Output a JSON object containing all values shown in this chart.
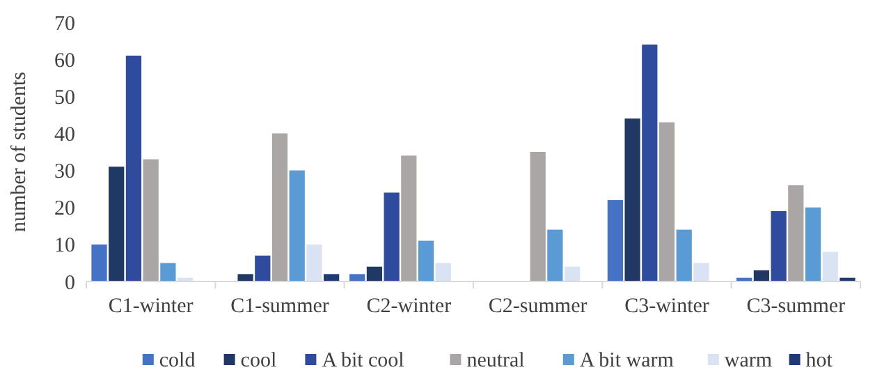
{
  "chart_data": {
    "type": "bar",
    "ylabel": "number of students",
    "categories": [
      "C1-winter",
      "C1-summer",
      "C2-winter",
      "C2-summer",
      "C3-winter",
      "C3-summer"
    ],
    "series": [
      {
        "name": "cold",
        "color": "#4472c4",
        "values": [
          10,
          0,
          2,
          0,
          22,
          1
        ]
      },
      {
        "name": "cool",
        "color": "#203864",
        "values": [
          31,
          2,
          4,
          0,
          44,
          3
        ]
      },
      {
        "name": "A bit cool",
        "color": "#2f4b9e",
        "values": [
          61,
          7,
          24,
          0,
          64,
          19
        ]
      },
      {
        "name": "neutral",
        "color": "#aaa6a6",
        "values": [
          33,
          40,
          34,
          35,
          43,
          26
        ]
      },
      {
        "name": "A bit warm",
        "color": "#5b9bd5",
        "values": [
          5,
          30,
          11,
          14,
          14,
          20
        ]
      },
      {
        "name": "warm",
        "color": "#dae3f3",
        "values": [
          1,
          10,
          5,
          4,
          5,
          8
        ]
      },
      {
        "name": "hot",
        "color": "#1f3b73",
        "values": [
          0,
          2,
          0,
          0,
          0,
          1
        ]
      }
    ],
    "ylim": [
      0,
      70
    ],
    "yticks": [
      0,
      10,
      20,
      30,
      40,
      50,
      60,
      70
    ],
    "grid": false,
    "legend": "bottom"
  }
}
